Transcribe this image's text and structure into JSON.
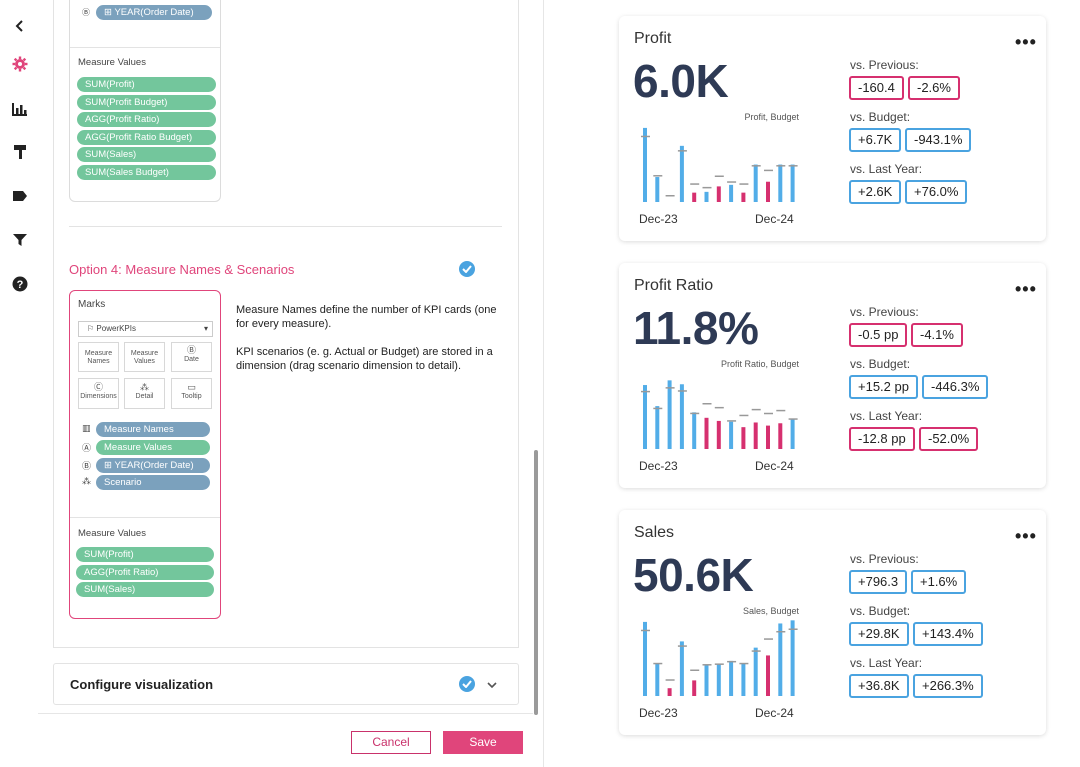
{
  "sidebar": {
    "icons": [
      "back-icon",
      "settings-icon",
      "chart-icon",
      "format-icon",
      "tag-icon",
      "filter-icon",
      "help-icon"
    ],
    "accent": "#e0457b"
  },
  "top_mock": {
    "pill_year": "YEAR(Order Date)",
    "measure_values_label": "Measure Values",
    "measures": [
      "SUM(Profit)",
      "SUM(Profit Budget)",
      "AGG(Profit Ratio)",
      "AGG(Profit Ratio Budget)",
      "SUM(Sales)",
      "SUM(Sales Budget)"
    ]
  },
  "option4": {
    "title": "Option 4: Measure Names & Scenarios",
    "desc1": "Measure Names define the number of KPI cards (one for every measure).",
    "desc2": "KPI scenarios (e. g. Actual or Budget) are stored in a dimension (drag scenario dimension to detail).",
    "marks_label": "Marks",
    "marks_dropdown": "PowerKPIs",
    "mark_boxes": [
      "Measure Names",
      "Measure Values",
      "Date",
      "Dimensions",
      "Detail",
      "Tooltip"
    ],
    "shelf_pills": [
      "Measure Names",
      "Measure Values",
      "YEAR(Order Date)",
      "Scenario"
    ],
    "measure_values_label": "Measure Values",
    "measures": [
      "SUM(Profit)",
      "AGG(Profit Ratio)",
      "SUM(Sales)"
    ]
  },
  "configure": {
    "title": "Configure visualization"
  },
  "footer": {
    "cancel": "Cancel",
    "save": "Save"
  },
  "kpis": [
    {
      "title": "Profit",
      "value": "6.0K",
      "chart_label": "Profit, Budget",
      "x_start": "Dec-23",
      "x_end": "Dec-24",
      "bars": [
        0.95,
        0.32,
        0.0,
        0.72,
        0.12,
        0.13,
        0.2,
        0.22,
        0.12,
        0.48,
        0.26,
        0.48,
        0.48
      ],
      "neg": [
        false,
        false,
        false,
        false,
        true,
        false,
        true,
        false,
        true,
        false,
        true,
        false,
        false
      ],
      "cmp": [
        {
          "label": "vs. Previous:",
          "a": "-160.4",
          "b": "-2.6%",
          "a_neg": true,
          "b_neg": true
        },
        {
          "label": "vs. Budget:",
          "a": "+6.7K",
          "b": "-943.1%",
          "a_neg": false,
          "b_neg": false
        },
        {
          "label": "vs. Last Year:",
          "a": "+2.6K",
          "b": "+76.0%",
          "a_neg": false,
          "b_neg": false
        }
      ]
    },
    {
      "title": "Profit Ratio",
      "value": "11.8%",
      "chart_label": "Profit Ratio, Budget",
      "x_start": "Dec-23",
      "x_end": "Dec-24",
      "bars": [
        0.82,
        0.55,
        0.88,
        0.83,
        0.47,
        0.4,
        0.36,
        0.35,
        0.28,
        0.34,
        0.3,
        0.33,
        0.38
      ],
      "neg": [
        false,
        false,
        false,
        false,
        false,
        true,
        true,
        false,
        true,
        true,
        true,
        true,
        false
      ],
      "cmp": [
        {
          "label": "vs. Previous:",
          "a": "-0.5 pp",
          "b": "-4.1%",
          "a_neg": true,
          "b_neg": true
        },
        {
          "label": "vs. Budget:",
          "a": "+15.2 pp",
          "b": "-446.3%",
          "a_neg": false,
          "b_neg": false
        },
        {
          "label": "vs. Last Year:",
          "a": "-12.8 pp",
          "b": "-52.0%",
          "a_neg": true,
          "b_neg": true
        }
      ]
    },
    {
      "title": "Sales",
      "value": "50.6K",
      "chart_label": "Sales, Budget",
      "x_start": "Dec-23",
      "x_end": "Dec-24",
      "bars": [
        0.95,
        0.42,
        0.1,
        0.7,
        0.2,
        0.4,
        0.41,
        0.45,
        0.42,
        0.62,
        0.52,
        0.93,
        0.97
      ],
      "neg": [
        false,
        false,
        true,
        false,
        true,
        false,
        false,
        false,
        false,
        false,
        true,
        false,
        false
      ],
      "cmp": [
        {
          "label": "vs. Previous:",
          "a": "+796.3",
          "b": "+1.6%",
          "a_neg": false,
          "b_neg": false
        },
        {
          "label": "vs. Budget:",
          "a": "+29.8K",
          "b": "+143.4%",
          "a_neg": false,
          "b_neg": false
        },
        {
          "label": "vs. Last Year:",
          "a": "+36.8K",
          "b": "+266.3%",
          "a_neg": false,
          "b_neg": false
        }
      ]
    }
  ],
  "colors": {
    "positive": "#4aa3e0",
    "negative": "#d6306f",
    "bar_blue": "#52ade8",
    "bar_pink": "#d6306f"
  }
}
